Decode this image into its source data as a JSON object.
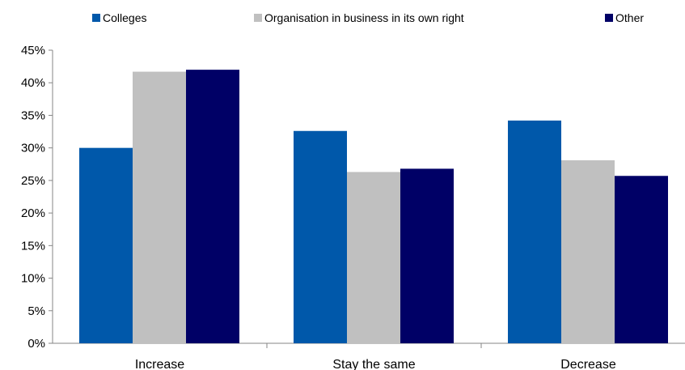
{
  "chart_data": {
    "type": "bar",
    "categories": [
      "Increase",
      "Stay the same",
      "Decrease"
    ],
    "series": [
      {
        "name": "Colleges",
        "color": "#0058AA",
        "values": [
          30.0,
          32.6,
          34.2
        ]
      },
      {
        "name": "Organisation in business in its own right",
        "color": "#C0C0C0",
        "values": [
          41.7,
          26.3,
          28.1
        ]
      },
      {
        "name": "Other",
        "color": "#000066",
        "values": [
          42.0,
          26.8,
          25.7
        ]
      }
    ],
    "ylim": [
      0,
      45
    ],
    "yticks": [
      0,
      5,
      10,
      15,
      20,
      25,
      30,
      35,
      40,
      45
    ],
    "ytick_labels": [
      "0%",
      "5%",
      "10%",
      "15%",
      "20%",
      "25%",
      "30%",
      "35%",
      "40%",
      "45%"
    ],
    "legend_position": "top",
    "grid": false
  }
}
